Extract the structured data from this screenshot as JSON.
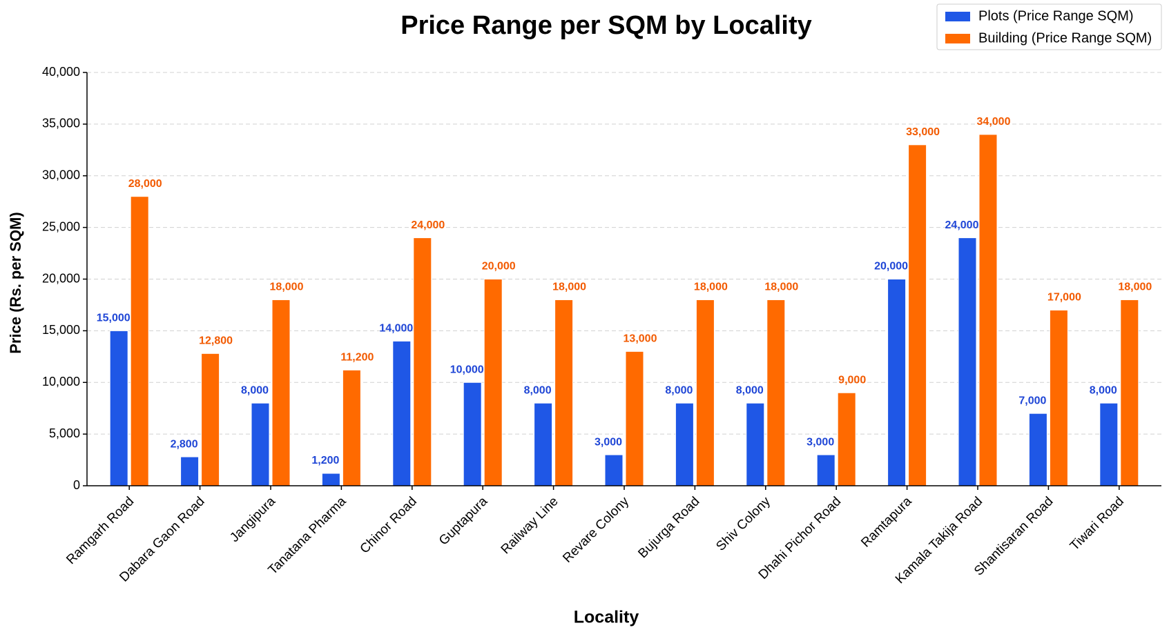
{
  "chart_data": {
    "type": "bar",
    "title": "Price Range per SQM by Locality",
    "x_label": "Locality",
    "y_label": "Price (Rs. per SQM)",
    "categories": [
      "Ramgarh Road",
      "Dabara Gaon Road",
      "Jangipura",
      "Tanatana Pharma",
      "Chinor Road",
      "Guptapura",
      "Railway Line",
      "Revare Colony",
      "Bujurga Road",
      "Shiv Colony",
      "Dhahi Pichor Road",
      "Ramtapura",
      "Kamala Takija Road",
      "Shantisaran Road",
      "Tiwari Road"
    ],
    "series": [
      {
        "name": "Plots (Price Range SQM)",
        "color": "#1f57e6",
        "label_color": "#1f46d6",
        "values": [
          15000,
          2800,
          8000,
          1200,
          14000,
          10000,
          8000,
          3000,
          8000,
          8000,
          3000,
          20000,
          24000,
          7000,
          8000
        ],
        "value_labels": [
          "15,000",
          "2,800",
          "8,000",
          "1,200",
          "14,000",
          "10,000",
          "8,000",
          "3,000",
          "8,000",
          "8,000",
          "3,000",
          "20,000",
          "24,000",
          "7,000",
          "8,000"
        ]
      },
      {
        "name": "Building (Price Range SQM)",
        "color": "#ff6a00",
        "label_color": "#f25a00",
        "values": [
          28000,
          12800,
          18000,
          11200,
          24000,
          20000,
          18000,
          13000,
          18000,
          18000,
          9000,
          33000,
          34000,
          17000,
          18000
        ],
        "value_labels": [
          "28,000",
          "12,800",
          "18,000",
          "11,200",
          "24,000",
          "20,000",
          "18,000",
          "13,000",
          "18,000",
          "18,000",
          "9,000",
          "33,000",
          "34,000",
          "17,000",
          "18,000"
        ]
      }
    ],
    "ylim": [
      0,
      40000
    ],
    "yticks": [
      0,
      {
        "value": 5000,
        "label": "5,000"
      },
      {
        "value": 10000,
        "label": "10,000"
      },
      {
        "value": 15000,
        "label": "15,000"
      },
      {
        "value": 20000,
        "label": "20,000"
      },
      {
        "value": 25000,
        "label": "25,000"
      },
      {
        "value": 30000,
        "label": "30,000"
      },
      {
        "value": 35000,
        "label": "35,000"
      },
      {
        "value": 40000,
        "label": "40,000"
      }
    ],
    "grid": true,
    "legend": "upper-right"
  }
}
